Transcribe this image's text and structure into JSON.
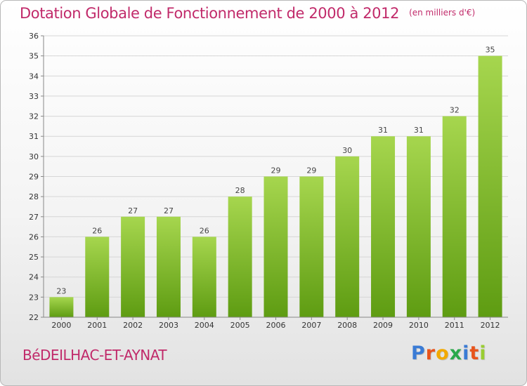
{
  "title": "Dotation Globale de Fonctionnement de 2000 à 2012",
  "unit_note": "(en milliers d'€)",
  "commune": "BéDEILHAC-ET-AYNAT",
  "logo": [
    "P",
    "r",
    "o",
    "x",
    "i",
    "t",
    "i"
  ],
  "logo_colors": [
    "#3a7bd5",
    "#e8541c",
    "#f2a900",
    "#2aa84a",
    "#3a7bd5",
    "#e8541c",
    "#9acd32"
  ],
  "colors": {
    "bar_top": "#a6d64e",
    "bar_bottom": "#5e9c12",
    "title": "#c12a6a"
  },
  "chart_data": {
    "type": "bar",
    "categories": [
      "2000",
      "2001",
      "2002",
      "2003",
      "2004",
      "2005",
      "2006",
      "2007",
      "2008",
      "2009",
      "2010",
      "2011",
      "2012"
    ],
    "values": [
      23,
      26,
      27,
      27,
      26,
      28,
      29,
      29,
      30,
      31,
      31,
      32,
      35
    ],
    "ylim": [
      22,
      36
    ],
    "yticks": [
      22,
      23,
      24,
      25,
      26,
      27,
      28,
      29,
      30,
      31,
      32,
      33,
      34,
      35,
      36
    ],
    "title": "Dotation Globale de Fonctionnement de 2000 à 2012",
    "xlabel": "",
    "ylabel": "",
    "grid": true
  }
}
